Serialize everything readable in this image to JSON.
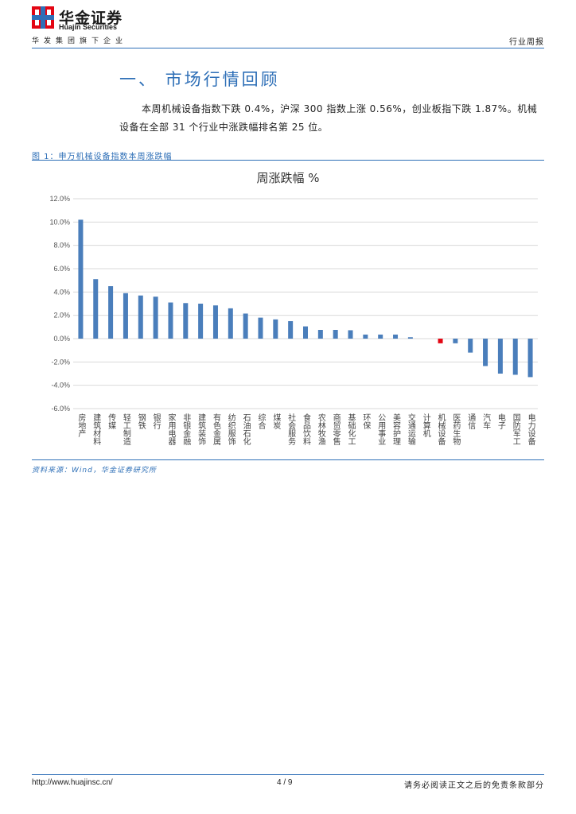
{
  "header": {
    "logo_cn": "华金证券",
    "logo_en": "Huajin Securities",
    "group_line": "华发集团旗下企业",
    "report_type": "行业周报"
  },
  "section": {
    "title": "一、 市场行情回顾",
    "paragraph": "本周机械设备指数下跌 0.4%，沪深 300 指数上涨 0.56%，创业板指下跌 1.87%。机械设备在全部 31 个行业中涨跌幅排名第 25 位。"
  },
  "figure": {
    "caption": "图 1：申万机械设备指数本周涨跌幅",
    "source": "资料来源：Wind，华金证券研究所"
  },
  "colors": {
    "accent": "#2e6fb7",
    "bar": "#4a7ebb",
    "highlight": "#e30613"
  },
  "chart_data": {
    "type": "bar",
    "title": "周涨跌幅 %",
    "ylim": [
      -6,
      12
    ],
    "yticks": [
      "12.0%",
      "10.0%",
      "8.0%",
      "6.0%",
      "4.0%",
      "2.0%",
      "0.0%",
      "-2.0%",
      "-4.0%",
      "-6.0%"
    ],
    "grid": true,
    "highlight_category": "机械设备",
    "categories": [
      "房地产",
      "建筑材料",
      "传媒",
      "轻工制造",
      "钢铁",
      "银行",
      "家用电器",
      "非银金融",
      "建筑装饰",
      "有色金属",
      "纺织服饰",
      "石油石化",
      "综合",
      "煤炭",
      "社会服务",
      "食品饮料",
      "农林牧渔",
      "商贸零售",
      "基础化工",
      "环保",
      "公用事业",
      "美容护理",
      "交通运输",
      "计算机",
      "机械设备",
      "医药生物",
      "通信",
      "汽车",
      "电子",
      "国防军工",
      "电力设备"
    ],
    "values": [
      10.2,
      5.1,
      4.5,
      3.9,
      3.7,
      3.6,
      3.1,
      3.05,
      3.0,
      2.85,
      2.6,
      2.15,
      1.8,
      1.65,
      1.5,
      1.05,
      0.75,
      0.75,
      0.72,
      0.35,
      0.35,
      0.35,
      0.12,
      0.0,
      -0.4,
      -0.4,
      -1.2,
      -2.35,
      -3.0,
      -3.1,
      -3.3
    ]
  },
  "footer": {
    "url": "http://www.huajinsc.cn/",
    "page": "4 / 9",
    "note": "请务必阅读正文之后的免责条款部分"
  }
}
